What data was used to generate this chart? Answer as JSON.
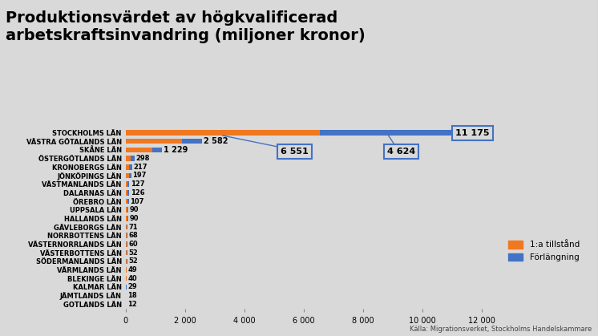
{
  "title": "Produktionsvärdet av högkvalificerad\narbetskraftsinvandring (miljoner kronor)",
  "background_color": "#d9d9d9",
  "plot_bg_color": "#d9d9d9",
  "categories": [
    "GOTLANDS LÄN",
    "JÄMTLANDS LÄN",
    "KALMAR LÄN",
    "BLEKINGE LÄN",
    "VÄRMLANDS LÄN",
    "SÖDERMANLANDS LÄN",
    "VÄSTERBOTTENS LÄN",
    "VÄSTERNORRLANDS LÄN",
    "NORRBOTTENS LÄN",
    "GÄVLEBORGS LÄN",
    "HALLANDS LÄN",
    "UPPSALA LÄN",
    "ÖREBRO LÄN",
    "DALARNAS LÄN",
    "VÄSTMANLANDS LÄN",
    "JÖNKÖPINGS LÄN",
    "KRONOBERGS LÄN",
    "ÖSTERGÖTLANDS LÄN",
    "SKÅNE LÄN",
    "VÄSTRA GÖTALANDS LÄN",
    "STOCKHOLMS LÄN"
  ],
  "orange_values": [
    7,
    10,
    17,
    24,
    30,
    29,
    29,
    34,
    39,
    41,
    50,
    52,
    60,
    72,
    71,
    110,
    121,
    168,
    900,
    1900,
    6551
  ],
  "blue_values": [
    5,
    8,
    12,
    16,
    19,
    23,
    23,
    26,
    29,
    30,
    40,
    38,
    47,
    54,
    56,
    87,
    96,
    130,
    329,
    682,
    4624
  ],
  "totals": [
    12,
    18,
    29,
    40,
    49,
    52,
    52,
    60,
    68,
    71,
    90,
    90,
    107,
    126,
    127,
    197,
    217,
    298,
    1229,
    2582,
    11175
  ],
  "orange_color": "#f07820",
  "blue_color": "#4472c4",
  "legend_orange": "1:a tillstånd",
  "legend_blue": "Förlängning",
  "callout_stockholm_orange": "6 551",
  "callout_stockholm_blue": "4 624",
  "label_stockholm": "11 175",
  "label_vastra": "2 582",
  "label_skane": "1 229",
  "bar_labels": [
    "12",
    "18",
    "29",
    "40",
    "49",
    "52",
    "52",
    "60",
    "68",
    "71",
    "90",
    "90",
    "107",
    "126",
    "127",
    "197",
    "217",
    "298",
    "1 229",
    "2 582",
    "11 175"
  ],
  "xlim": [
    0,
    12500
  ],
  "xticks": [
    0,
    2000,
    4000,
    6000,
    8000,
    10000,
    12000
  ],
  "xtick_labels": [
    "0",
    "2 000",
    "4 000",
    "6 000",
    "8 000",
    "10 000",
    "12 000"
  ],
  "source_text": "Källa: Migrationsverket, Stockholms Handelskammare",
  "title_fontsize": 14,
  "bar_height": 0.6
}
